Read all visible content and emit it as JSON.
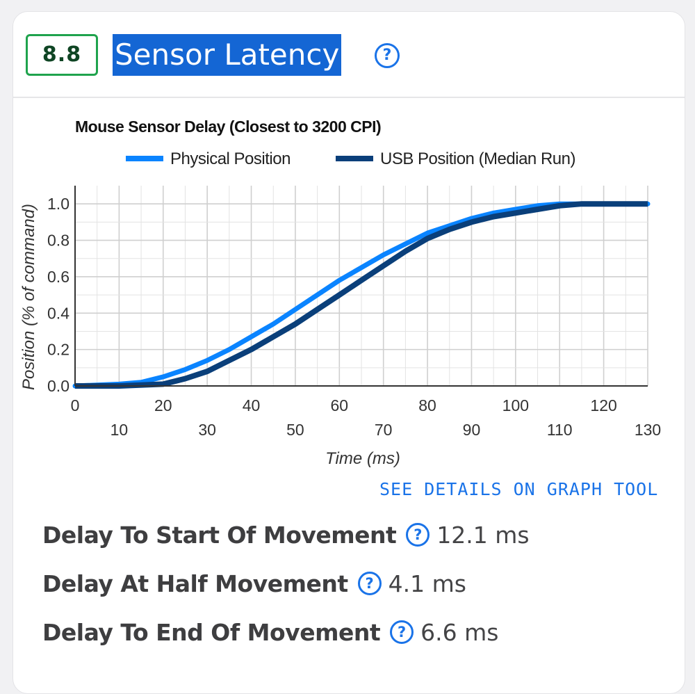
{
  "score": "8.8",
  "heading": "Sensor Latency",
  "details_link": "SEE DETAILS ON GRAPH TOOL",
  "metrics": [
    {
      "label": "Delay To Start Of Movement",
      "value": "12.1 ms"
    },
    {
      "label": "Delay At Half Movement",
      "value": "4.1 ms"
    },
    {
      "label": "Delay To End Of Movement",
      "value": "6.6 ms"
    }
  ],
  "colors": {
    "physical": "#0a84ff",
    "usb": "#0a3f7a",
    "accent": "#1a73e8",
    "score_border": "#1fa34d"
  },
  "chart_data": {
    "type": "line",
    "title": "Mouse Sensor Delay (Closest to 3200 CPI)",
    "xlabel": "Time (ms)",
    "ylabel": "Position (% of command)",
    "xlim": [
      0,
      130
    ],
    "ylim": [
      0,
      1.1
    ],
    "x_ticks_upper": [
      0,
      20,
      40,
      60,
      80,
      100,
      120
    ],
    "x_ticks_lower": [
      10,
      30,
      50,
      70,
      90,
      110,
      130
    ],
    "y_ticks": [
      "0.0",
      "0.2",
      "0.4",
      "0.6",
      "0.8",
      "1.0"
    ],
    "grid": true,
    "legend_position": "top",
    "series": [
      {
        "name": "Physical Position",
        "x": [
          0,
          10,
          15,
          20,
          25,
          30,
          35,
          40,
          45,
          50,
          55,
          60,
          65,
          70,
          75,
          80,
          85,
          90,
          95,
          100,
          105,
          110,
          115,
          120,
          125,
          130
        ],
        "y": [
          0.0,
          0.01,
          0.02,
          0.05,
          0.09,
          0.14,
          0.2,
          0.27,
          0.34,
          0.42,
          0.5,
          0.58,
          0.65,
          0.72,
          0.78,
          0.84,
          0.88,
          0.92,
          0.95,
          0.97,
          0.99,
          1.0,
          1.0,
          1.0,
          1.0,
          1.0
        ]
      },
      {
        "name": "USB Position (Median Run)",
        "x": [
          0,
          10,
          20,
          25,
          30,
          35,
          40,
          45,
          50,
          55,
          60,
          65,
          70,
          75,
          80,
          85,
          90,
          95,
          100,
          105,
          110,
          115,
          120,
          125,
          130
        ],
        "y": [
          0.0,
          0.0,
          0.01,
          0.04,
          0.08,
          0.14,
          0.2,
          0.27,
          0.34,
          0.42,
          0.5,
          0.58,
          0.66,
          0.74,
          0.81,
          0.86,
          0.9,
          0.93,
          0.95,
          0.97,
          0.99,
          1.0,
          1.0,
          1.0,
          1.0
        ]
      }
    ]
  }
}
